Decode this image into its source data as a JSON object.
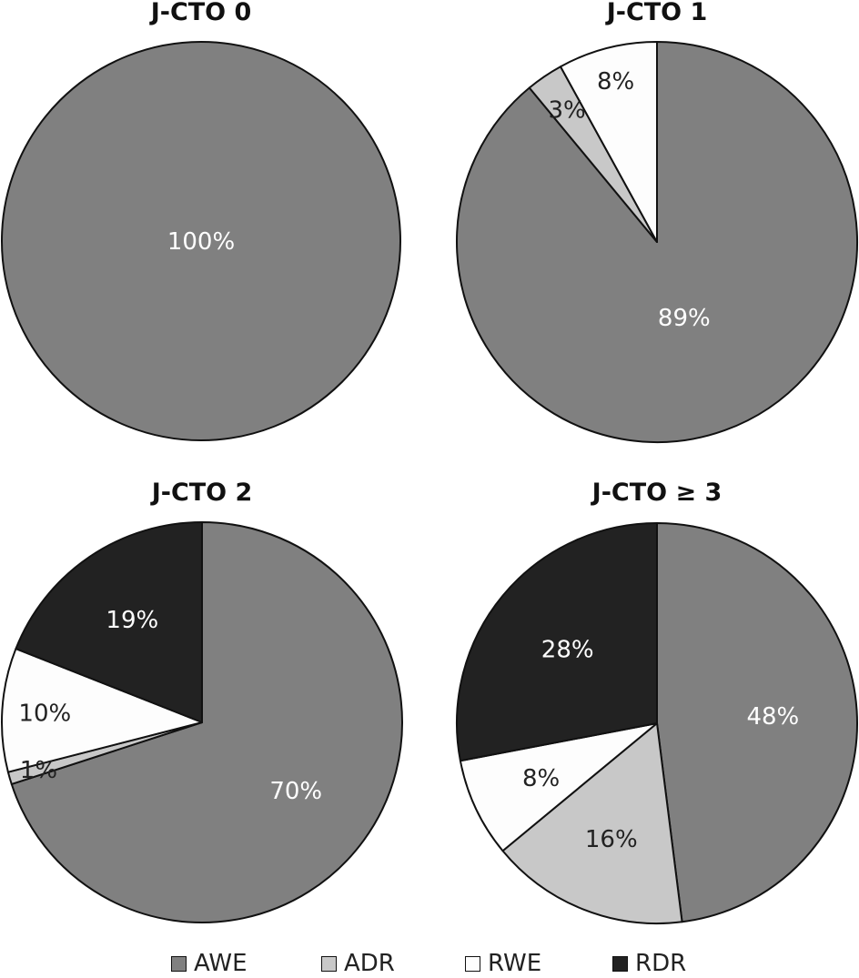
{
  "colors": {
    "AWE": "#808080",
    "ADR": "#c8c8c8",
    "RWE": "#fdfdfd",
    "RDR": "#222222",
    "outline": "#111111"
  },
  "chart_data": [
    {
      "type": "pie",
      "title": "J-CTO 0",
      "slices": [
        {
          "name": "AWE",
          "value": 100,
          "label": "100%"
        }
      ],
      "direction": "clockwise",
      "start": "12 o'clock"
    },
    {
      "type": "pie",
      "title": "J-CTO 1",
      "slices": [
        {
          "name": "AWE",
          "value": 89,
          "label": "89%"
        },
        {
          "name": "ADR",
          "value": 3,
          "label": "3%"
        },
        {
          "name": "RWE",
          "value": 8,
          "label": "8%"
        }
      ],
      "direction": "clockwise",
      "start": "12 o'clock"
    },
    {
      "type": "pie",
      "title": "J-CTO 2",
      "slices": [
        {
          "name": "AWE",
          "value": 70,
          "label": "70%"
        },
        {
          "name": "ADR",
          "value": 1,
          "label": "1%"
        },
        {
          "name": "RWE",
          "value": 10,
          "label": "10%"
        },
        {
          "name": "RDR",
          "value": 19,
          "label": "19%"
        }
      ],
      "direction": "clockwise",
      "start": "12 o'clock"
    },
    {
      "type": "pie",
      "title": "J-CTO ≥ 3",
      "slices": [
        {
          "name": "AWE",
          "value": 48,
          "label": "48%"
        },
        {
          "name": "ADR",
          "value": 16,
          "label": "16%"
        },
        {
          "name": "RWE",
          "value": 8,
          "label": "8%"
        },
        {
          "name": "RDR",
          "value": 28,
          "label": "28%"
        }
      ],
      "direction": "clockwise",
      "start": "12 o'clock"
    }
  ],
  "legend": {
    "items": [
      {
        "name": "AWE",
        "label": "AWE"
      },
      {
        "name": "ADR",
        "label": "ADR"
      },
      {
        "name": "RWE",
        "label": "RWE"
      },
      {
        "name": "RDR",
        "label": "RDR"
      }
    ]
  }
}
